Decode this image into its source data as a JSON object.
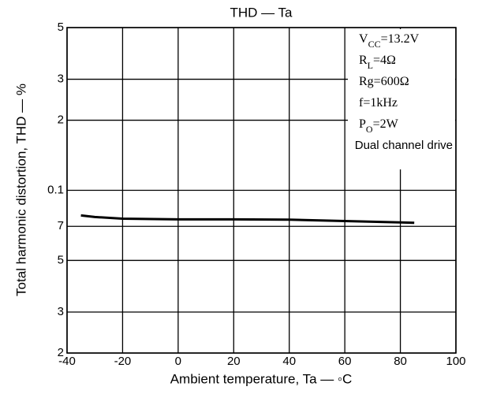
{
  "chart_data": {
    "type": "line",
    "title": "THD — Ta",
    "xlabel": "Ambient temperature, Ta — ◦C",
    "ylabel": "Total harmonic distortion, THD — %",
    "log_y": true,
    "grid": true,
    "xlim": [
      -40,
      100
    ],
    "xticks": [
      -40,
      -20,
      0,
      20,
      40,
      60,
      80,
      100
    ],
    "ylim": [
      0.02,
      0.5
    ],
    "yticks": [
      {
        "value": 0.5,
        "label": "5"
      },
      {
        "value": 0.3,
        "label": "3"
      },
      {
        "value": 0.2,
        "label": "2"
      },
      0.1,
      {
        "value": 0.07,
        "label": "7"
      },
      {
        "value": 0.05,
        "label": "5"
      },
      {
        "value": 0.03,
        "label": "3"
      },
      {
        "value": 0.02,
        "label": "2"
      }
    ],
    "annotations": [
      [
        "V",
        "CC",
        "=13.2V"
      ],
      [
        "R",
        "L",
        "=4Ω"
      ],
      [
        "Rg=600Ω"
      ],
      [
        "f=1kHz"
      ],
      [
        "P",
        "O",
        "=2W"
      ],
      [
        "Dual channel drive"
      ]
    ],
    "x": [
      -35,
      -30,
      -20,
      0,
      20,
      40,
      60,
      80,
      85
    ],
    "series": [
      {
        "color": "#000000",
        "values": [
          0.078,
          0.0768,
          0.0755,
          0.075,
          0.075,
          0.0748,
          0.0738,
          0.0728,
          0.0725
        ]
      }
    ]
  }
}
